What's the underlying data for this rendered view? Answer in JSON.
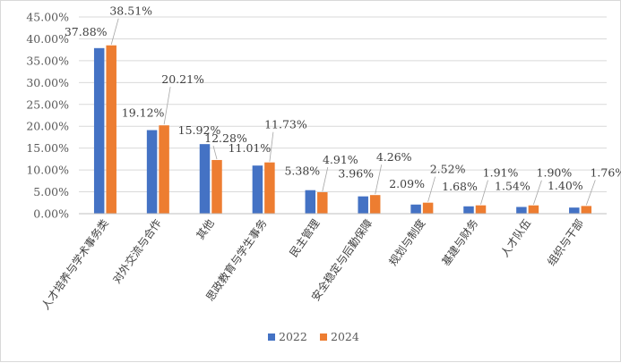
{
  "chart_data": {
    "type": "bar",
    "categories": [
      "人才培养与学术事务类",
      "对外交流与合作",
      "其他",
      "思政教育与学生事务",
      "民主管理",
      "安全稳定与后勤保障",
      "规划与制度",
      "基建与财务",
      "人才队伍",
      "组织与干部"
    ],
    "series": [
      {
        "name": "2022",
        "values": [
          37.88,
          19.12,
          15.92,
          11.01,
          5.38,
          3.96,
          2.09,
          1.68,
          1.54,
          1.4
        ],
        "labels": [
          "37.88%",
          "19.12%",
          "15.92%",
          "11.01%",
          "5.38%",
          "3.96%",
          "2.09%",
          "1.68%",
          "1.54%",
          "1.40%"
        ],
        "color": "#4472C4"
      },
      {
        "name": "2024",
        "values": [
          38.51,
          20.21,
          12.28,
          11.73,
          4.91,
          4.26,
          2.52,
          1.91,
          1.9,
          1.76
        ],
        "labels": [
          "38.51%",
          "20.21%",
          "12.28%",
          "11.73%",
          "4.91%",
          "4.26%",
          "2.52%",
          "1.91%",
          "1.90%",
          "1.76%"
        ],
        "color": "#ED7D31"
      }
    ],
    "y_ticks": [
      "0.00%",
      "5.00%",
      "10.00%",
      "15.00%",
      "20.00%",
      "25.00%",
      "30.00%",
      "35.00%",
      "40.00%",
      "45.00%"
    ],
    "ylim": [
      0,
      45
    ],
    "y_step": 5,
    "grid": true,
    "legend_position": "bottom",
    "title": "",
    "xlabel": "",
    "ylabel": ""
  }
}
